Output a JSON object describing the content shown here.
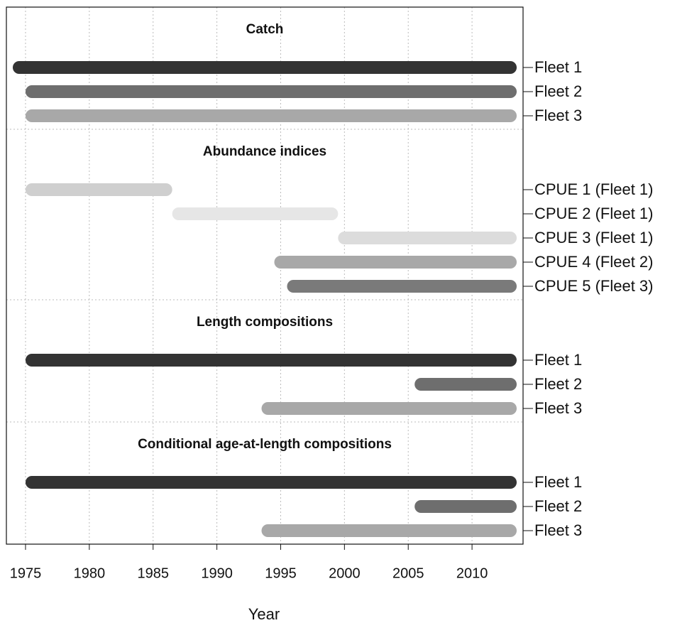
{
  "chart_data": {
    "type": "timeline",
    "xlabel": "Year",
    "xlim": [
      1973.5,
      2014
    ],
    "xticks": [
      1975,
      1980,
      1985,
      1990,
      1995,
      2000,
      2005,
      2010
    ],
    "grid": true,
    "sections": [
      {
        "title": "Catch",
        "rows": [
          {
            "label": "Fleet 1",
            "start": 1974.5,
            "end": 2013,
            "color": "#333333"
          },
          {
            "label": "Fleet 2",
            "start": 1975.5,
            "end": 2013,
            "color": "#6e6e6e"
          },
          {
            "label": "Fleet 3",
            "start": 1975.5,
            "end": 2013,
            "color": "#a8a8a8"
          }
        ]
      },
      {
        "title": "Abundance indices",
        "rows": [
          {
            "label": "CPUE 1 (Fleet 1)",
            "start": 1975.5,
            "end": 1986,
            "color": "#cfcfcf"
          },
          {
            "label": "CPUE 2 (Fleet 1)",
            "start": 1987,
            "end": 1999,
            "color": "#e6e6e6"
          },
          {
            "label": "CPUE 3 (Fleet 1)",
            "start": 2000,
            "end": 2013,
            "color": "#dcdcdc"
          },
          {
            "label": "CPUE 4 (Fleet 2)",
            "start": 1995,
            "end": 2013,
            "color": "#a8a8a8"
          },
          {
            "label": "CPUE 5 (Fleet 3)",
            "start": 1996,
            "end": 2013,
            "color": "#7a7a7a"
          }
        ]
      },
      {
        "title": "Length compositions",
        "rows": [
          {
            "label": "Fleet 1",
            "start": 1975.5,
            "end": 2013,
            "color": "#333333"
          },
          {
            "label": "Fleet 2",
            "start": 2006,
            "end": 2013,
            "color": "#6e6e6e"
          },
          {
            "label": "Fleet 3",
            "start": 1994,
            "end": 2013,
            "color": "#a8a8a8"
          }
        ]
      },
      {
        "title": "Conditional age-at-length compositions",
        "rows": [
          {
            "label": "Fleet 1",
            "start": 1975.5,
            "end": 2013,
            "color": "#333333"
          },
          {
            "label": "Fleet 2",
            "start": 2006,
            "end": 2013,
            "color": "#6e6e6e"
          },
          {
            "label": "Fleet 3",
            "start": 1994,
            "end": 2013,
            "color": "#a8a8a8"
          }
        ]
      }
    ]
  }
}
